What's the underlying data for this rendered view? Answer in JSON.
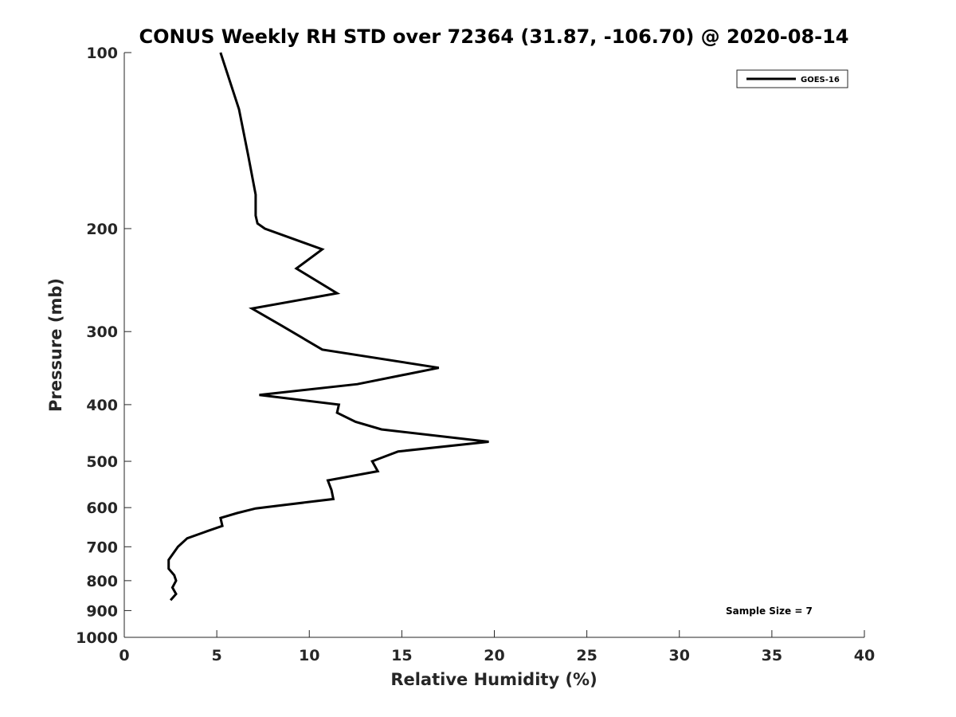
{
  "chart_data": {
    "type": "line",
    "title": "CONUS Weekly RH STD over 72364 (31.87, -106.70) @ 2020-08-14",
    "xlabel": "Relative Humidity (%)",
    "ylabel": "Pressure (mb)",
    "xlim": [
      0,
      40
    ],
    "ylim": [
      100,
      1000
    ],
    "yscale": "log",
    "y_reversed": true,
    "grid": false,
    "xticks": [
      0,
      5,
      10,
      15,
      20,
      25,
      30,
      35,
      40
    ],
    "yticks": [
      100,
      200,
      300,
      400,
      500,
      600,
      700,
      800,
      900,
      1000
    ],
    "legend_position": "top-right",
    "series": [
      {
        "name": "GOES-16",
        "color": "#000000",
        "x": [
          5.2,
          6.2,
          6.7,
          7.1,
          7.1,
          7.2,
          7.6,
          10.7,
          9.3,
          11.5,
          6.9,
          8.5,
          10.7,
          17.0,
          12.6,
          7.3,
          11.6,
          11.5,
          12.5,
          13.9,
          19.7,
          14.8,
          13.4,
          13.7,
          11.0,
          11.2,
          11.3,
          7.1,
          6.1,
          5.2,
          5.3,
          4.5,
          3.4,
          2.9,
          2.4,
          2.4,
          2.7,
          2.8,
          2.6,
          2.8,
          2.5
        ],
        "y": [
          100,
          125,
          150,
          175,
          190,
          196,
          200,
          217,
          234,
          258,
          274,
          293,
          322,
          346,
          369,
          385,
          400,
          413,
          428,
          441,
          463,
          481,
          500,
          520,
          539,
          560,
          580,
          602,
          613,
          625,
          645,
          658,
          677,
          700,
          737,
          763,
          783,
          800,
          822,
          843,
          864
        ]
      }
    ],
    "annotations": [
      "Sample Size = 7"
    ]
  }
}
